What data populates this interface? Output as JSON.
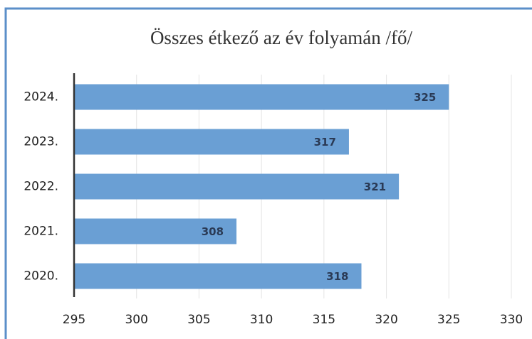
{
  "chart_data": {
    "type": "bar",
    "orientation": "horizontal",
    "title": "Összes étkező az év folyamán /fő/",
    "categories": [
      "2024.",
      "2023.",
      "2022.",
      "2021.",
      "2020."
    ],
    "values": [
      325,
      317,
      321,
      308,
      318
    ],
    "color": "#6a9fd4",
    "xlim": [
      295,
      330
    ],
    "xticks": [
      295,
      300,
      305,
      310,
      315,
      320,
      325,
      330
    ],
    "grid": true
  }
}
